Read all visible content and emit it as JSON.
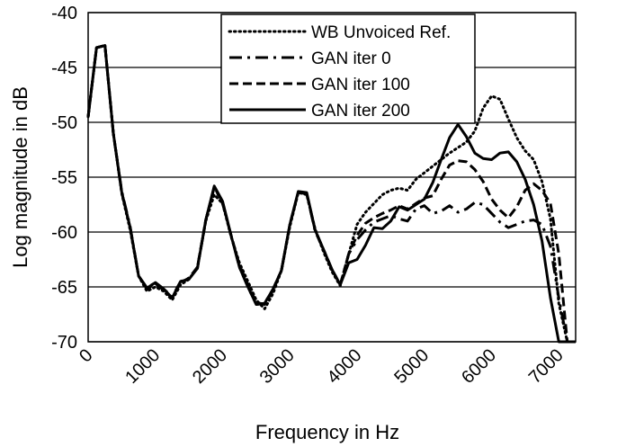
{
  "chart_data": {
    "type": "line",
    "xlabel": "Frequency in Hz",
    "ylabel": "Log magnitude in dB",
    "xlim": [
      0,
      7250
    ],
    "ylim": [
      -70,
      -40
    ],
    "x_ticks": [
      0,
      1000,
      2000,
      3000,
      4000,
      5000,
      6000,
      7000
    ],
    "y_ticks": [
      -40,
      -45,
      -50,
      -55,
      -60,
      -65,
      -70
    ],
    "grid": "horizontal",
    "legend_position": "top-center",
    "series": [
      {
        "name": "WB Unvoiced Ref.",
        "style": "dotted",
        "x": [
          0,
          125,
          250,
          375,
          500,
          625,
          750,
          875,
          1000,
          1125,
          1250,
          1375,
          1500,
          1625,
          1750,
          1875,
          2000,
          2125,
          2250,
          2375,
          2500,
          2625,
          2750,
          2875,
          3000,
          3125,
          3250,
          3375,
          3500,
          3625,
          3750,
          3875,
          4000,
          4125,
          4250,
          4375,
          4500,
          4625,
          4750,
          4875,
          5000,
          5125,
          5250,
          5375,
          5500,
          5625,
          5750,
          5875,
          6000,
          6125,
          6250,
          6375,
          6500,
          6625,
          6750,
          6875,
          7000,
          7125,
          7250
        ],
        "y": [
          -49.5,
          -43.2,
          -43.0,
          -51.0,
          -56.5,
          -59.8,
          -64.0,
          -65.4,
          -65.0,
          -65.4,
          -66.2,
          -64.8,
          -64.3,
          -63.2,
          -59.0,
          -56.6,
          -57.4,
          -60.4,
          -62.8,
          -64.5,
          -66.2,
          -67.0,
          -65.6,
          -63.5,
          -59.5,
          -56.4,
          -56.6,
          -59.7,
          -61.8,
          -63.6,
          -64.9,
          -62.0,
          -59.3,
          -58.2,
          -57.4,
          -56.6,
          -56.2,
          -56.0,
          -56.2,
          -55.2,
          -54.6,
          -54.0,
          -53.4,
          -52.8,
          -52.3,
          -51.8,
          -50.8,
          -48.7,
          -47.6,
          -47.9,
          -49.7,
          -51.4,
          -52.6,
          -53.4,
          -55.4,
          -58.8,
          -66.5,
          -70.0,
          -70.0
        ]
      },
      {
        "name": "GAN iter 0",
        "style": "dash-dot",
        "x": [
          0,
          125,
          250,
          375,
          500,
          625,
          750,
          875,
          1000,
          1125,
          1250,
          1375,
          1500,
          1625,
          1750,
          1875,
          2000,
          2125,
          2250,
          2375,
          2500,
          2625,
          2750,
          2875,
          3000,
          3125,
          3250,
          3375,
          3500,
          3625,
          3750,
          3875,
          4000,
          4125,
          4250,
          4375,
          4500,
          4625,
          4750,
          4875,
          5000,
          5125,
          5250,
          5375,
          5500,
          5625,
          5750,
          5875,
          6000,
          6125,
          6250,
          6375,
          6500,
          6625,
          6750,
          6875,
          7000,
          7125,
          7250
        ],
        "y": [
          -49.5,
          -43.2,
          -43.0,
          -51.0,
          -56.3,
          -59.5,
          -64.0,
          -65.1,
          -64.6,
          -65.2,
          -65.9,
          -64.5,
          -64.2,
          -63.3,
          -58.9,
          -55.9,
          -57.4,
          -60.3,
          -63.2,
          -65.0,
          -66.6,
          -66.5,
          -65.2,
          -63.5,
          -59.3,
          -56.4,
          -56.5,
          -59.9,
          -61.6,
          -63.4,
          -64.8,
          -62.0,
          -60.7,
          -59.8,
          -59.1,
          -58.8,
          -58.5,
          -58.8,
          -59.0,
          -57.9,
          -57.6,
          -58.3,
          -58.1,
          -57.6,
          -58.2,
          -57.9,
          -57.3,
          -57.5,
          -58.3,
          -59.1,
          -59.6,
          -59.3,
          -59.0,
          -58.9,
          -59.3,
          -61.3,
          -66.0,
          -70.0,
          -70.0
        ]
      },
      {
        "name": "GAN iter 100",
        "style": "dashed",
        "x": [
          0,
          125,
          250,
          375,
          500,
          625,
          750,
          875,
          1000,
          1125,
          1250,
          1375,
          1500,
          1625,
          1750,
          1875,
          2000,
          2125,
          2250,
          2375,
          2500,
          2625,
          2750,
          2875,
          3000,
          3125,
          3250,
          3375,
          3500,
          3625,
          3750,
          3875,
          4000,
          4125,
          4250,
          4375,
          4500,
          4625,
          4750,
          4875,
          5000,
          5125,
          5250,
          5375,
          5500,
          5625,
          5750,
          5875,
          6000,
          6125,
          6250,
          6375,
          6500,
          6625,
          6750,
          6875,
          7000,
          7125,
          7250
        ],
        "y": [
          -49.5,
          -43.2,
          -43.0,
          -51.0,
          -56.4,
          -59.6,
          -64.0,
          -65.2,
          -64.7,
          -65.3,
          -66.0,
          -64.6,
          -64.2,
          -63.2,
          -58.9,
          -55.9,
          -57.3,
          -60.3,
          -63.0,
          -64.8,
          -66.4,
          -66.6,
          -65.3,
          -63.5,
          -59.3,
          -56.4,
          -56.5,
          -59.8,
          -61.6,
          -63.4,
          -64.8,
          -62.0,
          -60.3,
          -59.2,
          -58.7,
          -58.3,
          -58.0,
          -57.6,
          -57.9,
          -57.4,
          -56.9,
          -56.7,
          -55.2,
          -53.9,
          -53.5,
          -53.6,
          -54.3,
          -55.4,
          -57.0,
          -58.0,
          -58.7,
          -57.7,
          -56.2,
          -55.6,
          -56.2,
          -57.4,
          -62.0,
          -70.0,
          -70.0
        ]
      },
      {
        "name": "GAN iter 200",
        "style": "solid",
        "x": [
          0,
          125,
          250,
          375,
          500,
          625,
          750,
          875,
          1000,
          1125,
          1250,
          1375,
          1500,
          1625,
          1750,
          1875,
          2000,
          2125,
          2250,
          2375,
          2500,
          2625,
          2750,
          2875,
          3000,
          3125,
          3250,
          3375,
          3500,
          3625,
          3750,
          3875,
          4000,
          4125,
          4250,
          4375,
          4500,
          4625,
          4750,
          4875,
          5000,
          5125,
          5250,
          5375,
          5500,
          5625,
          5750,
          5875,
          6000,
          6125,
          6250,
          6375,
          6500,
          6625,
          6750,
          6875,
          7000,
          7125,
          7250
        ],
        "y": [
          -49.5,
          -43.2,
          -43.0,
          -51.0,
          -56.4,
          -59.6,
          -64.0,
          -65.1,
          -64.6,
          -65.2,
          -66.0,
          -64.5,
          -64.3,
          -63.3,
          -58.9,
          -55.8,
          -57.2,
          -60.3,
          -63.2,
          -65.0,
          -66.6,
          -66.5,
          -65.2,
          -63.5,
          -59.3,
          -56.3,
          -56.4,
          -59.8,
          -61.6,
          -63.4,
          -64.8,
          -62.8,
          -62.5,
          -61.2,
          -59.6,
          -59.7,
          -59.0,
          -57.7,
          -58.0,
          -57.5,
          -57.0,
          -55.5,
          -53.4,
          -51.4,
          -50.2,
          -51.3,
          -52.8,
          -53.3,
          -53.4,
          -52.8,
          -52.7,
          -53.6,
          -55.2,
          -57.5,
          -60.8,
          -66.0,
          -70.0,
          -70.0,
          -70.0
        ]
      }
    ]
  }
}
